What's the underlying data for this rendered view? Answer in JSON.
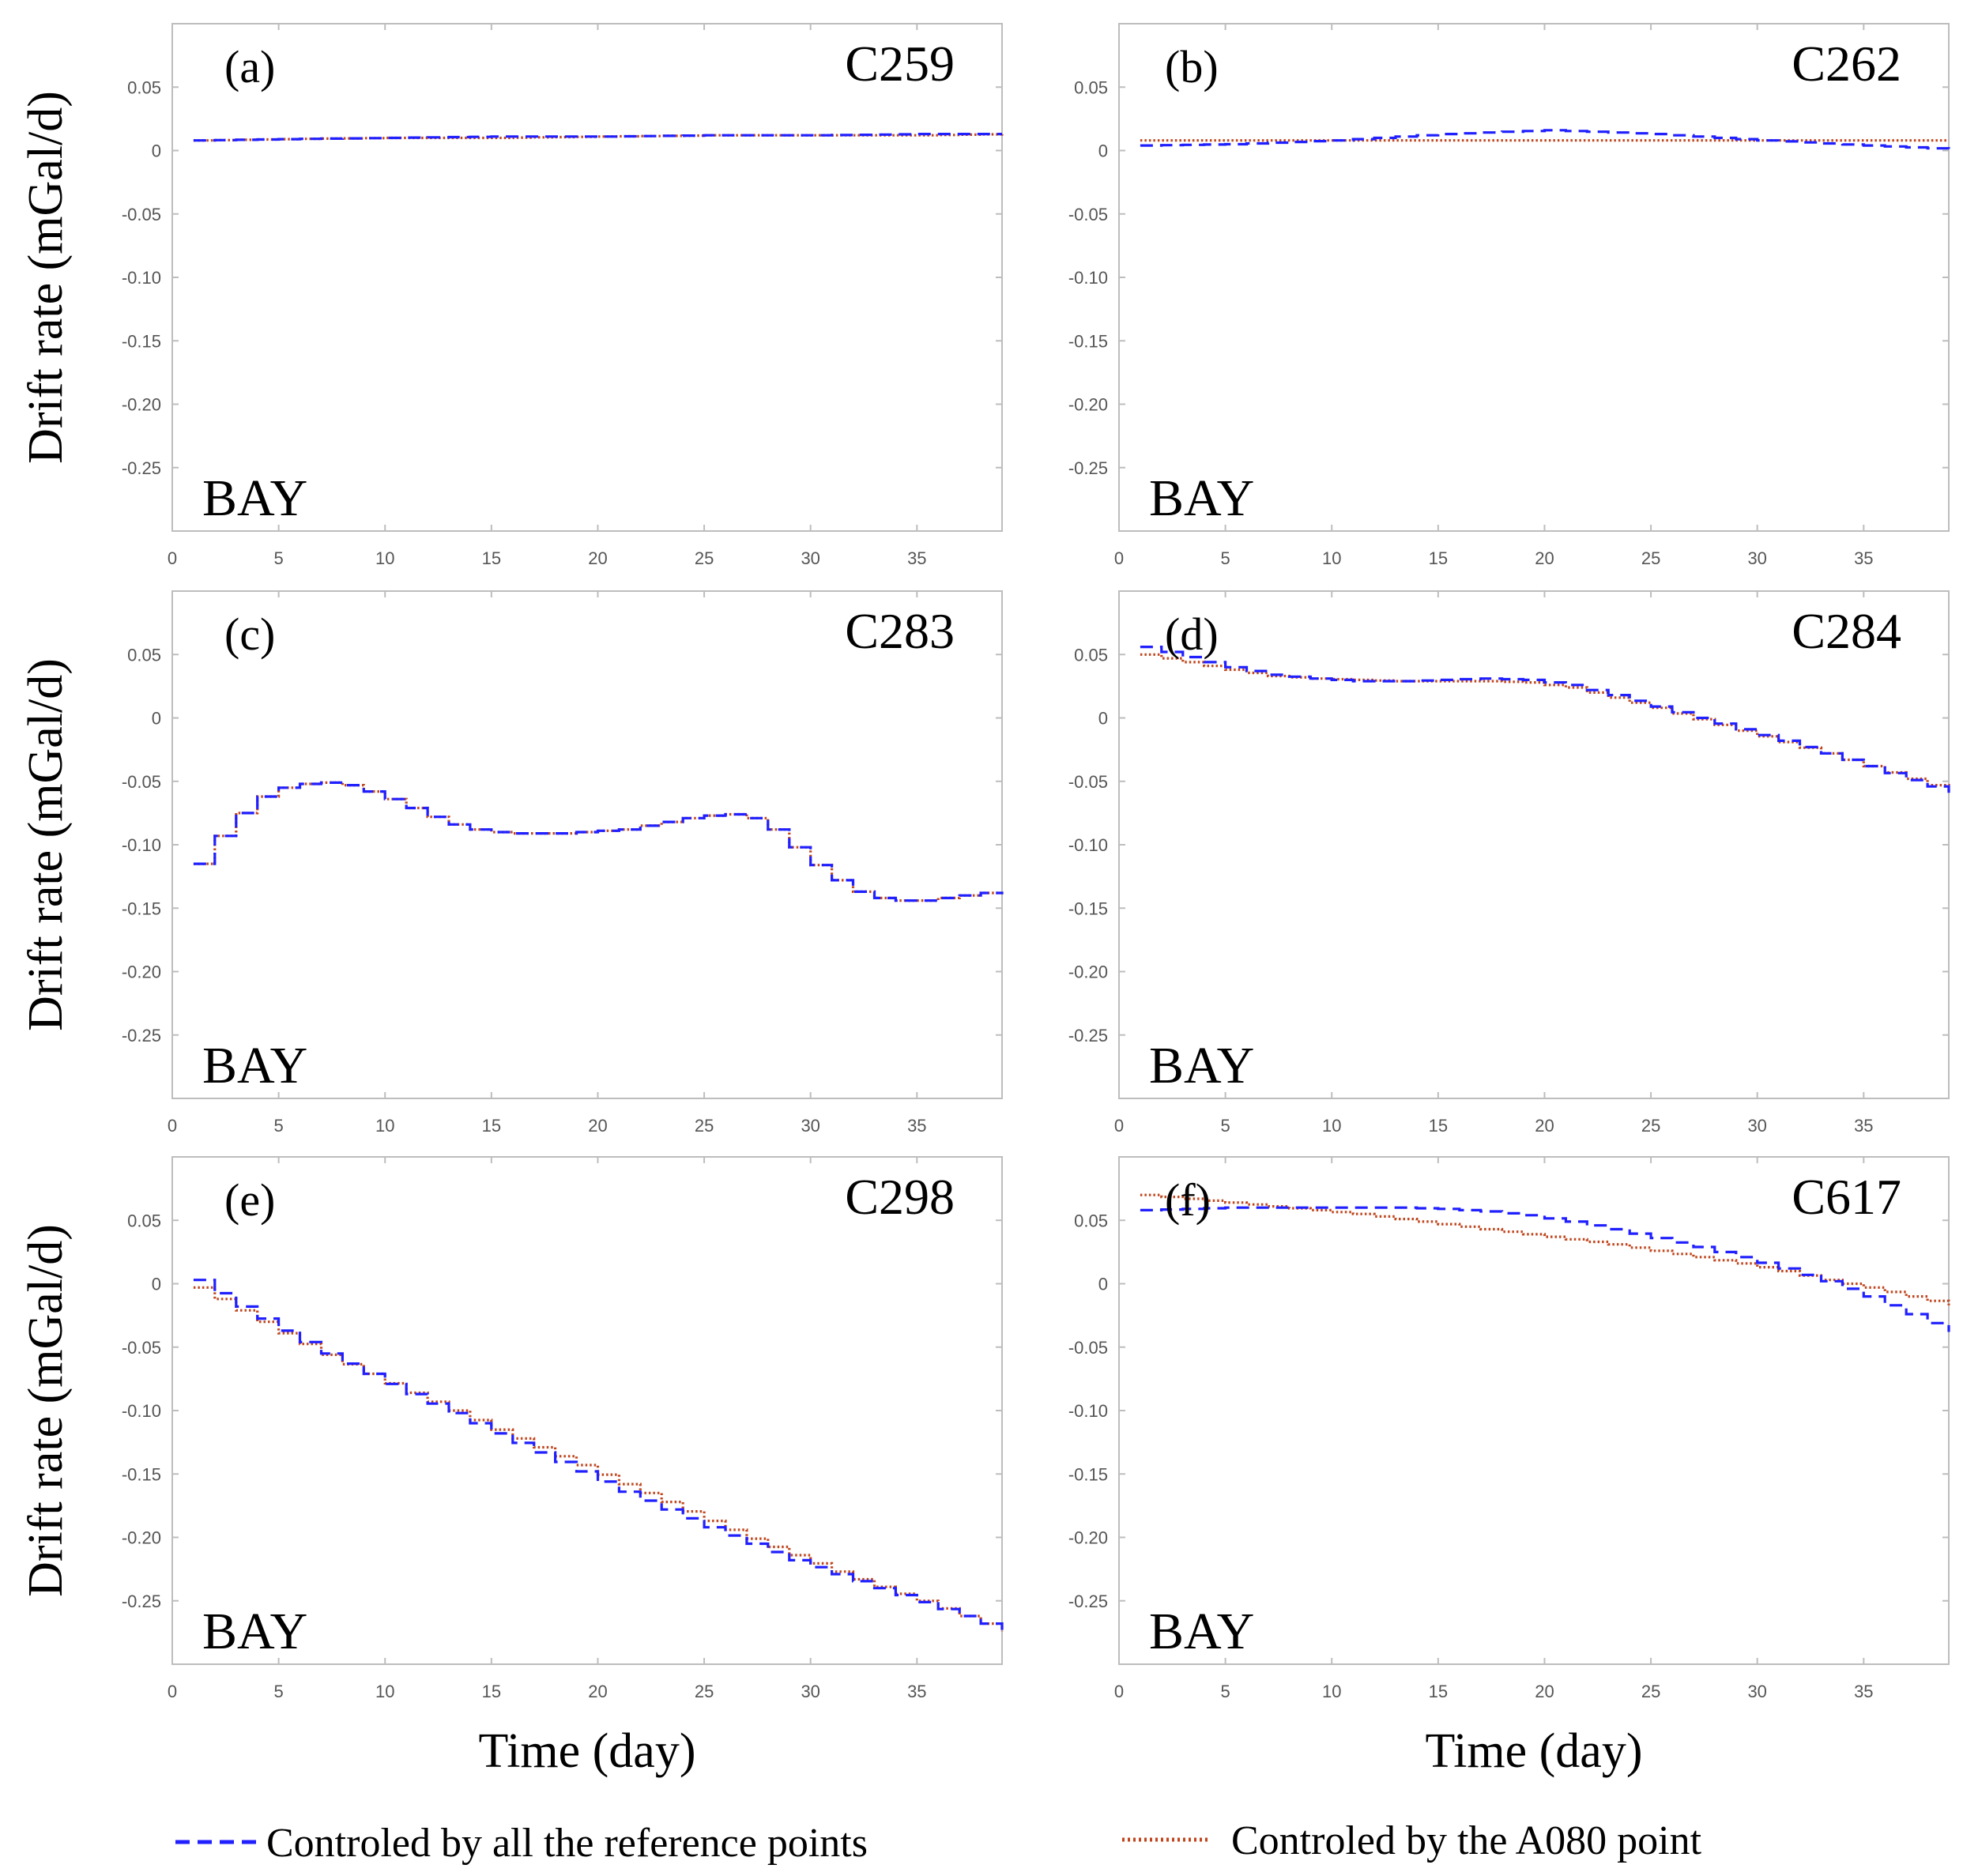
{
  "chart_data": [
    {
      "type": "line",
      "panel_label": "(a)",
      "station": "C259",
      "annotation": "BAY",
      "xlabel": "",
      "ylabel": "Drift rate (mGal/d)",
      "xlim": [
        0,
        39
      ],
      "ylim": [
        -0.3,
        0.1
      ],
      "xticks": [
        "0",
        "5",
        "10",
        "15",
        "20",
        "25",
        "30",
        "35"
      ],
      "yticks": [
        "0.05",
        "0",
        "-0.05",
        "-0.10",
        "-0.15",
        "-0.20",
        "-0.25"
      ],
      "x": [
        1,
        39
      ],
      "series": [
        {
          "name": "Controled by all the reference points",
          "x": [
            1,
            5,
            10,
            15,
            20,
            25,
            30,
            35,
            39
          ],
          "values": [
            0.008,
            0.009,
            0.01,
            0.011,
            0.011,
            0.012,
            0.012,
            0.013,
            0.013
          ]
        },
        {
          "name": "Controled by the A080 point",
          "x": [
            1,
            5,
            10,
            15,
            20,
            25,
            30,
            35,
            39
          ],
          "values": [
            0.008,
            0.009,
            0.01,
            0.01,
            0.011,
            0.012,
            0.012,
            0.012,
            0.013
          ]
        }
      ]
    },
    {
      "type": "line",
      "panel_label": "(b)",
      "station": "C262",
      "annotation": "BAY",
      "xlabel": "",
      "ylabel": "",
      "xlim": [
        0,
        39
      ],
      "ylim": [
        -0.3,
        0.1
      ],
      "xticks": [
        "0",
        "5",
        "10",
        "15",
        "20",
        "25",
        "30",
        "35"
      ],
      "yticks": [
        "0.05",
        "0",
        "-0.05",
        "-0.10",
        "-0.15",
        "-0.20",
        "-0.25"
      ],
      "series": [
        {
          "name": "Controled by all the reference points",
          "x": [
            1,
            5,
            10,
            15,
            20,
            25,
            30,
            35,
            39
          ],
          "values": [
            0.004,
            0.005,
            0.008,
            0.013,
            0.016,
            0.013,
            0.008,
            0.004,
            0.001
          ]
        },
        {
          "name": "Controled by the A080 point",
          "x": [
            1,
            5,
            10,
            15,
            20,
            25,
            30,
            35,
            39
          ],
          "values": [
            0.008,
            0.008,
            0.008,
            0.008,
            0.008,
            0.008,
            0.008,
            0.008,
            0.008
          ]
        }
      ]
    },
    {
      "type": "line",
      "panel_label": "(c)",
      "station": "C283",
      "annotation": "BAY",
      "xlabel": "",
      "ylabel": "Drift rate (mGal/d)",
      "xlim": [
        0,
        39
      ],
      "ylim": [
        -0.3,
        0.1
      ],
      "xticks": [
        "0",
        "5",
        "10",
        "15",
        "20",
        "25",
        "30",
        "35"
      ],
      "yticks": [
        "0.05",
        "0",
        "-0.05",
        "-0.10",
        "-0.15",
        "-0.20",
        "-0.25"
      ],
      "series": [
        {
          "name": "Controled by all the reference points",
          "x": [
            1,
            2,
            3,
            4,
            5,
            6,
            7,
            8,
            9,
            10,
            11,
            12,
            13,
            14,
            15,
            16,
            17,
            18,
            19,
            20,
            21,
            22,
            23,
            24,
            25,
            26,
            27,
            28,
            29,
            30,
            31,
            32,
            33,
            34,
            35,
            36,
            37,
            38,
            39
          ],
          "values": [
            -0.115,
            -0.093,
            -0.075,
            -0.062,
            -0.055,
            -0.052,
            -0.051,
            -0.053,
            -0.058,
            -0.064,
            -0.071,
            -0.078,
            -0.084,
            -0.088,
            -0.09,
            -0.091,
            -0.091,
            -0.091,
            -0.09,
            -0.089,
            -0.088,
            -0.085,
            -0.082,
            -0.079,
            -0.077,
            -0.076,
            -0.079,
            -0.088,
            -0.102,
            -0.116,
            -0.128,
            -0.137,
            -0.142,
            -0.144,
            -0.144,
            -0.142,
            -0.14,
            -0.138,
            -0.137
          ]
        },
        {
          "name": "Controled by the A080 point",
          "x": [
            1,
            2,
            3,
            4,
            5,
            6,
            7,
            8,
            9,
            10,
            11,
            12,
            13,
            14,
            15,
            16,
            17,
            18,
            19,
            20,
            21,
            22,
            23,
            24,
            25,
            26,
            27,
            28,
            29,
            30,
            31,
            32,
            33,
            34,
            35,
            36,
            37,
            38,
            39
          ],
          "values": [
            -0.115,
            -0.093,
            -0.075,
            -0.062,
            -0.055,
            -0.052,
            -0.051,
            -0.053,
            -0.058,
            -0.064,
            -0.071,
            -0.078,
            -0.084,
            -0.088,
            -0.09,
            -0.091,
            -0.091,
            -0.091,
            -0.09,
            -0.089,
            -0.088,
            -0.085,
            -0.082,
            -0.079,
            -0.077,
            -0.076,
            -0.079,
            -0.088,
            -0.102,
            -0.116,
            -0.128,
            -0.137,
            -0.142,
            -0.144,
            -0.144,
            -0.142,
            -0.14,
            -0.138,
            -0.137
          ]
        }
      ]
    },
    {
      "type": "line",
      "panel_label": "(d)",
      "station": "C284",
      "annotation": "BAY",
      "xlabel": "",
      "ylabel": "",
      "xlim": [
        0,
        39
      ],
      "ylim": [
        -0.3,
        0.1
      ],
      "xticks": [
        "0",
        "5",
        "10",
        "15",
        "20",
        "25",
        "30",
        "35"
      ],
      "yticks": [
        "0.05",
        "0",
        "-0.05",
        "-0.10",
        "-0.15",
        "-0.20",
        "-0.25"
      ],
      "series": [
        {
          "name": "Controled by all the reference points",
          "x": [
            1,
            3,
            5,
            7,
            9,
            11,
            13,
            15,
            17,
            19,
            21,
            23,
            25,
            27,
            29,
            31,
            33,
            35,
            37,
            39
          ],
          "values": [
            0.056,
            0.048,
            0.04,
            0.034,
            0.031,
            0.029,
            0.029,
            0.03,
            0.031,
            0.03,
            0.026,
            0.018,
            0.009,
            0.0,
            -0.009,
            -0.018,
            -0.028,
            -0.038,
            -0.049,
            -0.059
          ]
        },
        {
          "name": "Controled by the A080 point",
          "x": [
            1,
            3,
            5,
            7,
            9,
            11,
            13,
            15,
            17,
            19,
            21,
            23,
            25,
            27,
            29,
            31,
            33,
            35,
            37,
            39
          ],
          "values": [
            0.05,
            0.044,
            0.038,
            0.033,
            0.031,
            0.03,
            0.029,
            0.029,
            0.029,
            0.028,
            0.024,
            0.016,
            0.008,
            -0.001,
            -0.01,
            -0.019,
            -0.028,
            -0.038,
            -0.048,
            -0.058
          ]
        }
      ]
    },
    {
      "type": "line",
      "panel_label": "(e)",
      "station": "C298",
      "annotation": "BAY",
      "xlabel": "Time (day)",
      "ylabel": "Drift rate (mGal/d)",
      "xlim": [
        0,
        39
      ],
      "ylim": [
        -0.3,
        0.1
      ],
      "xticks": [
        "0",
        "5",
        "10",
        "15",
        "20",
        "25",
        "30",
        "35"
      ],
      "yticks": [
        "0.05",
        "0",
        "-0.05",
        "-0.10",
        "-0.15",
        "-0.20",
        "-0.25"
      ],
      "series": [
        {
          "name": "Controled by all the reference points",
          "x": [
            1,
            3,
            5,
            7,
            9,
            11,
            13,
            15,
            17,
            19,
            21,
            23,
            25,
            27,
            29,
            31,
            33,
            35,
            37,
            39
          ],
          "values": [
            0.003,
            -0.018,
            -0.037,
            -0.055,
            -0.071,
            -0.087,
            -0.102,
            -0.118,
            -0.133,
            -0.148,
            -0.164,
            -0.178,
            -0.192,
            -0.205,
            -0.218,
            -0.229,
            -0.24,
            -0.251,
            -0.262,
            -0.274
          ]
        },
        {
          "name": "Controled by the A080 point",
          "x": [
            1,
            3,
            5,
            7,
            9,
            11,
            13,
            15,
            17,
            19,
            21,
            23,
            25,
            27,
            29,
            31,
            33,
            35,
            37,
            39
          ],
          "values": [
            -0.003,
            -0.021,
            -0.039,
            -0.056,
            -0.071,
            -0.086,
            -0.1,
            -0.115,
            -0.129,
            -0.143,
            -0.158,
            -0.172,
            -0.187,
            -0.201,
            -0.214,
            -0.227,
            -0.239,
            -0.25,
            -0.262,
            -0.274
          ]
        }
      ]
    },
    {
      "type": "line",
      "panel_label": "(f)",
      "station": "C617",
      "annotation": "BAY",
      "xlabel": "Time (day)",
      "ylabel": "",
      "xlim": [
        0,
        39
      ],
      "ylim": [
        -0.3,
        0.1
      ],
      "xticks": [
        "0",
        "5",
        "10",
        "15",
        "20",
        "25",
        "30",
        "35"
      ],
      "yticks": [
        "0.05",
        "0",
        "-0.05",
        "-0.10",
        "-0.15",
        "-0.20",
        "-0.25"
      ],
      "series": [
        {
          "name": "Controled by all the reference points",
          "x": [
            1,
            3,
            5,
            7,
            9,
            11,
            13,
            15,
            17,
            19,
            21,
            23,
            25,
            27,
            29,
            31,
            33,
            35,
            37,
            39
          ],
          "values": [
            0.058,
            0.059,
            0.06,
            0.06,
            0.06,
            0.06,
            0.06,
            0.059,
            0.057,
            0.054,
            0.049,
            0.043,
            0.036,
            0.029,
            0.021,
            0.012,
            0.002,
            -0.01,
            -0.024,
            -0.038
          ]
        },
        {
          "name": "Controled by the A080 point",
          "x": [
            1,
            3,
            5,
            7,
            9,
            11,
            13,
            15,
            17,
            19,
            21,
            23,
            25,
            27,
            29,
            31,
            33,
            35,
            37,
            39
          ],
          "values": [
            0.07,
            0.067,
            0.064,
            0.061,
            0.058,
            0.055,
            0.051,
            0.047,
            0.043,
            0.039,
            0.035,
            0.031,
            0.026,
            0.021,
            0.016,
            0.01,
            0.003,
            -0.003,
            -0.01,
            -0.017
          ]
        }
      ]
    }
  ],
  "legend": {
    "series_a": "Controled by all the reference points",
    "series_b": "Controled by the A080 point"
  },
  "colors": {
    "series_a": "#1f1fff",
    "series_b": "#c0451d"
  },
  "series_icons": {
    "series_a": "dashed-line",
    "series_b": "dotted-line"
  }
}
